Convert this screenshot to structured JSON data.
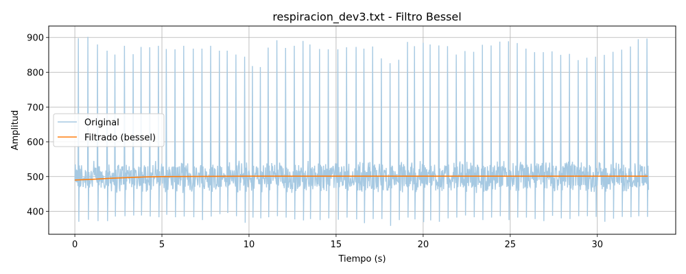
{
  "chart_data": {
    "type": "line",
    "title": "respiracion_dev3.txt - Filtro Bessel",
    "xlabel": "Tiempo (s)",
    "ylabel": "Amplitud",
    "xlim": [
      -1.5,
      34.5
    ],
    "ylim": [
      334,
      933
    ],
    "xticks": [
      0,
      5,
      10,
      15,
      20,
      25,
      30
    ],
    "yticks": [
      400,
      500,
      600,
      700,
      800,
      900
    ],
    "grid": true,
    "legend_position": "center-left",
    "baseline": 500,
    "beats": {
      "t": [
        0.2,
        0.75,
        1.3,
        1.85,
        2.3,
        2.85,
        3.35,
        3.8,
        4.3,
        4.8,
        5.25,
        5.75,
        6.25,
        6.8,
        7.3,
        7.8,
        8.3,
        8.75,
        9.25,
        9.75,
        10.2,
        10.65,
        11.1,
        11.6,
        12.1,
        12.6,
        13.1,
        13.5,
        14.05,
        14.55,
        15.1,
        15.6,
        16.15,
        16.6,
        17.1,
        17.6,
        18.1,
        18.6,
        19.1,
        19.5,
        20.0,
        20.4,
        20.9,
        21.4,
        21.9,
        22.4,
        22.9,
        23.4,
        23.9,
        24.4,
        24.9,
        25.4,
        25.9,
        26.4,
        26.9,
        27.4,
        27.9,
        28.4,
        28.9,
        29.4,
        29.9,
        30.4,
        30.9,
        31.4,
        31.9,
        32.35,
        32.85
      ],
      "peak": [
        898,
        902,
        880,
        862,
        851,
        876,
        852,
        873,
        872,
        876,
        867,
        866,
        876,
        868,
        868,
        876,
        862,
        862,
        851,
        845,
        818,
        815,
        871,
        892,
        870,
        876,
        890,
        880,
        867,
        866,
        866,
        872,
        873,
        868,
        874,
        840,
        826,
        836,
        887,
        875,
        885,
        880,
        877,
        875,
        851,
        861,
        859,
        879,
        877,
        888,
        889,
        884,
        868,
        858,
        858,
        860,
        850,
        853,
        835,
        842,
        845,
        850,
        859,
        865,
        874,
        895,
        897
      ],
      "trough": [
        370,
        376,
        372,
        372,
        385,
        386,
        388,
        388,
        385,
        383,
        390,
        383,
        385,
        383,
        375,
        385,
        392,
        395,
        386,
        367,
        382,
        380,
        383,
        386,
        382,
        377,
        374,
        378,
        375,
        380,
        376,
        382,
        377,
        366,
        378,
        378,
        358,
        375,
        382,
        377,
        369,
        374,
        370,
        380,
        382,
        388,
        383,
        375,
        382,
        386,
        375,
        382,
        382,
        378,
        372,
        387,
        380,
        378,
        386,
        386,
        384,
        370,
        379,
        384,
        383,
        386,
        384
      ]
    },
    "series": [
      {
        "name": "Original",
        "color": "#a6c9e2"
      },
      {
        "name": "Filtrado (bessel)",
        "color": "#ff7f0e",
        "values_x": [
          0,
          0.5,
          1.0,
          2.0,
          3.0,
          4.0,
          5.0,
          10.0,
          20.0,
          30.0,
          32.9
        ],
        "values_y": [
          490,
          491,
          492,
          495,
          497,
          499,
          500,
          501,
          501,
          501,
          501
        ]
      }
    ]
  }
}
